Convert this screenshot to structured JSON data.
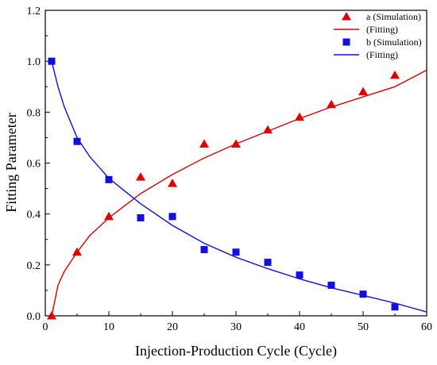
{
  "chart_data": {
    "type": "scatter",
    "xlabel": "Injection-Production Cycle (Cycle)",
    "ylabel": "Fitting Parameter",
    "xlim": [
      0,
      60
    ],
    "ylim": [
      0,
      1.2
    ],
    "xticks": [
      0,
      10,
      20,
      30,
      40,
      50,
      60
    ],
    "yticks": [
      0.0,
      0.2,
      0.4,
      0.6,
      0.8,
      1.0,
      1.2
    ],
    "ytick_labels": [
      "0.0",
      "0.2",
      "0.4",
      "0.6",
      "0.8",
      "1.0",
      "1.2"
    ],
    "grid": false,
    "legend_position": "top-right",
    "series": [
      {
        "name": "a (Simulation)",
        "kind": "scatter",
        "marker": "triangle",
        "color": "#e00000",
        "x": [
          1,
          5,
          10,
          15,
          20,
          25,
          30,
          35,
          40,
          45,
          50,
          55
        ],
        "y": [
          0.0,
          0.25,
          0.39,
          0.545,
          0.52,
          0.675,
          0.675,
          0.73,
          0.78,
          0.83,
          0.88,
          0.945
        ]
      },
      {
        "name": "(Fitting)",
        "kind": "line",
        "color": "#e00000",
        "x": [
          1,
          2,
          3,
          5,
          7,
          10,
          15,
          20,
          25,
          30,
          35,
          40,
          45,
          50,
          55,
          60
        ],
        "y": [
          0.0,
          0.12,
          0.175,
          0.25,
          0.315,
          0.385,
          0.48,
          0.555,
          0.62,
          0.675,
          0.725,
          0.775,
          0.82,
          0.86,
          0.9,
          0.965
        ]
      },
      {
        "name": "b (Simulation)",
        "kind": "scatter",
        "marker": "square",
        "color": "#1010e0",
        "x": [
          1,
          5,
          10,
          15,
          20,
          25,
          30,
          35,
          40,
          45,
          50,
          55
        ],
        "y": [
          1.0,
          0.685,
          0.535,
          0.385,
          0.39,
          0.26,
          0.25,
          0.21,
          0.16,
          0.12,
          0.085,
          0.035
        ]
      },
      {
        "name": "(Fitting)",
        "kind": "line",
        "color": "#1010e0",
        "x": [
          1,
          2,
          3,
          5,
          7,
          10,
          15,
          20,
          25,
          30,
          35,
          40,
          45,
          50,
          55,
          60
        ],
        "y": [
          1.0,
          0.9,
          0.82,
          0.7,
          0.625,
          0.54,
          0.44,
          0.355,
          0.285,
          0.23,
          0.185,
          0.145,
          0.11,
          0.08,
          0.05,
          0.015
        ]
      }
    ]
  }
}
